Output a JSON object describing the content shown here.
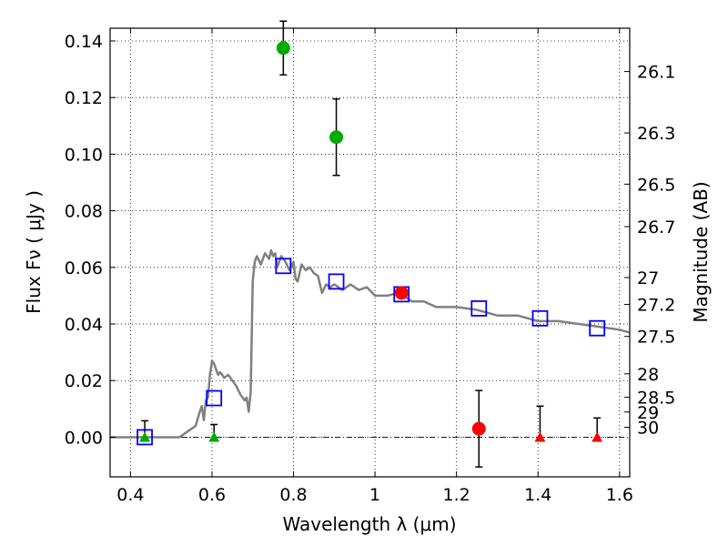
{
  "chart_data": {
    "type": "scatter",
    "title": "",
    "xlabel": "Wavelength  λ (μm)",
    "ylabel": "Flux  Fν  ( μJy )",
    "y2label": "Magnitude (AB)",
    "xlim": [
      0.35,
      1.625
    ],
    "ylim": [
      -0.014,
      0.1445
    ],
    "grid": true,
    "x_ticks": [
      0.4,
      0.6,
      0.8,
      1.0,
      1.2,
      1.4,
      1.6
    ],
    "x_tick_labels": [
      "0.4",
      "0.6",
      "0.8",
      "1",
      "1.2",
      "1.4",
      "1.6"
    ],
    "y_ticks": [
      0.0,
      0.02,
      0.04,
      0.06,
      0.08,
      0.1,
      0.12,
      0.14
    ],
    "y_tick_labels": [
      "0.00",
      "0.02",
      "0.04",
      "0.06",
      "0.08",
      "0.10",
      "0.12",
      "0.14"
    ],
    "magnitude_ticks": [
      {
        "label": "26.1",
        "flux": 0.1292
      },
      {
        "label": "26.3",
        "flux": 0.1075
      },
      {
        "label": "26.5",
        "flux": 0.0894
      },
      {
        "label": "26.7",
        "flux": 0.0744
      },
      {
        "label": "27",
        "flux": 0.0564
      },
      {
        "label": "27.2",
        "flux": 0.0469
      },
      {
        "label": "27.5",
        "flux": 0.0356
      },
      {
        "label": "28",
        "flux": 0.0224
      },
      {
        "label": "28.5",
        "flux": 0.0141
      },
      {
        "label": "29",
        "flux": 0.0089
      },
      {
        "label": "30",
        "flux": 0.0035
      }
    ],
    "zero_line": true,
    "model_sed": {
      "color": "#808080",
      "x": [
        0.35,
        0.5,
        0.52,
        0.54,
        0.56,
        0.57,
        0.575,
        0.58,
        0.585,
        0.59,
        0.595,
        0.6,
        0.605,
        0.61,
        0.615,
        0.62,
        0.63,
        0.64,
        0.65,
        0.66,
        0.67,
        0.68,
        0.685,
        0.69,
        0.695,
        0.7,
        0.705,
        0.71,
        0.72,
        0.73,
        0.74,
        0.745,
        0.75,
        0.755,
        0.76,
        0.77,
        0.78,
        0.79,
        0.8,
        0.805,
        0.81,
        0.815,
        0.82,
        0.83,
        0.84,
        0.85,
        0.86,
        0.87,
        0.88,
        0.89,
        0.9,
        0.92,
        0.94,
        0.96,
        0.98,
        1.0,
        1.03,
        1.06,
        1.09,
        1.12,
        1.15,
        1.2,
        1.25,
        1.3,
        1.35,
        1.4,
        1.45,
        1.5,
        1.55,
        1.6,
        1.625
      ],
      "y": [
        0.0,
        0.0,
        0.0,
        0.002,
        0.004,
        0.009,
        0.011,
        0.006,
        0.013,
        0.014,
        0.022,
        0.027,
        0.026,
        0.024,
        0.022,
        0.023,
        0.021,
        0.022,
        0.02,
        0.018,
        0.015,
        0.013,
        0.014,
        0.009,
        0.016,
        0.055,
        0.062,
        0.064,
        0.061,
        0.065,
        0.063,
        0.066,
        0.064,
        0.065,
        0.06,
        0.064,
        0.062,
        0.059,
        0.062,
        0.056,
        0.055,
        0.058,
        0.061,
        0.059,
        0.06,
        0.058,
        0.057,
        0.051,
        0.054,
        0.053,
        0.054,
        0.052,
        0.054,
        0.052,
        0.053,
        0.05,
        0.05,
        0.051,
        0.048,
        0.048,
        0.046,
        0.046,
        0.045,
        0.043,
        0.043,
        0.041,
        0.041,
        0.04,
        0.039,
        0.038,
        0.037
      ]
    },
    "series": [
      {
        "name": "",
        "marker": "square-open",
        "color": "#0000ff",
        "x": [
          0.435,
          0.605,
          0.775,
          0.905,
          1.065,
          1.255,
          1.405,
          1.545
        ],
        "y": [
          0.0,
          0.0138,
          0.0605,
          0.055,
          0.0505,
          0.0455,
          0.042,
          0.0385
        ]
      },
      {
        "name": "",
        "marker": "circle",
        "color": "#00aa00",
        "x": [
          0.775,
          0.905
        ],
        "y": [
          0.1375,
          0.106
        ],
        "yerr": [
          0.0095,
          0.0135
        ]
      },
      {
        "name": "",
        "marker": "triangle-up",
        "color": "#00aa00",
        "x": [
          0.435,
          0.605
        ],
        "y": [
          0.0,
          0.0
        ],
        "yerr_upper": [
          0.0058,
          0.0045
        ]
      },
      {
        "name": "",
        "marker": "circle",
        "color": "#ff0000",
        "x": [
          1.065,
          1.255
        ],
        "y": [
          0.051,
          0.003
        ],
        "yerr": [
          0.0,
          0.0135
        ]
      },
      {
        "name": "",
        "marker": "triangle-up",
        "color": "#ff0000",
        "x": [
          1.405,
          1.545
        ],
        "y": [
          0.0,
          0.0
        ],
        "yerr_upper": [
          0.011,
          0.0068
        ]
      }
    ]
  }
}
